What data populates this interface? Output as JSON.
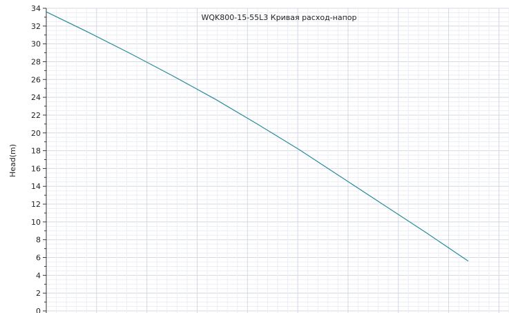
{
  "chart_data": {
    "type": "line",
    "title": "WQK800-15-55L3 Кривая расход-напор",
    "ylabel": "Head(m)",
    "xlabel": "",
    "ylim": [
      0,
      34
    ],
    "yticks": [
      "0",
      "2",
      "4",
      "6",
      "8",
      "10",
      "12",
      "14",
      "16",
      "18",
      "20",
      "22",
      "24",
      "26",
      "28",
      "30",
      "32",
      "34"
    ],
    "xlim": [
      0,
      1150
    ],
    "grid": true,
    "colors": {
      "line": "#2a8a9c",
      "grid_major": "#d4d8e4",
      "grid_minor": "#eceef4",
      "axis": "#333333"
    },
    "series": [
      {
        "x": [
          0,
          100,
          200,
          300,
          400,
          500,
          600,
          700,
          800,
          900,
          1000,
          1050
        ],
        "y": [
          33.6,
          31.3,
          28.9,
          26.4,
          23.8,
          21.0,
          18.1,
          15.0,
          11.9,
          8.8,
          5.6,
          5.6
        ]
      }
    ]
  }
}
